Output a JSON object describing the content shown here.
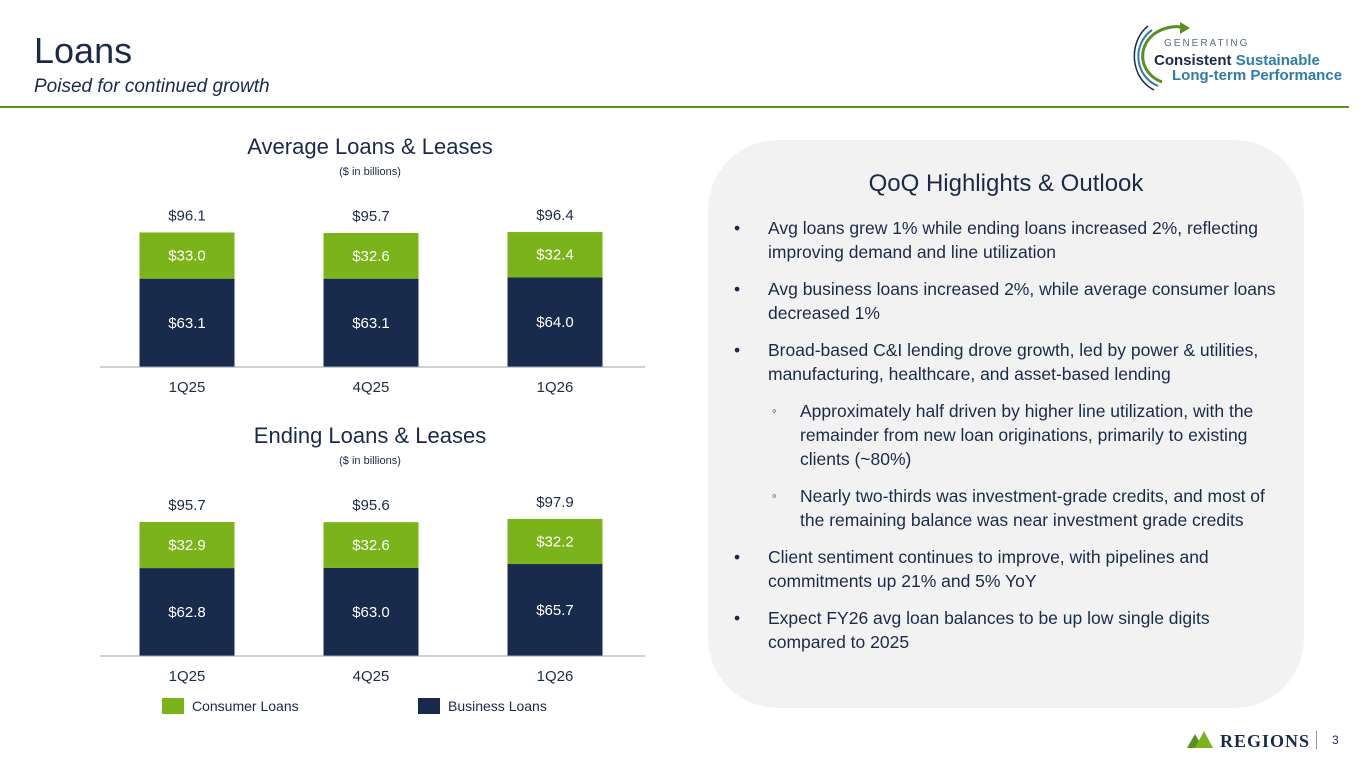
{
  "header": {
    "title": "Loans",
    "subtitle": "Poised for continued growth"
  },
  "logo": {
    "line1": "GENERATING",
    "line2a": "Consistent",
    "line2b": "Sustainable",
    "line3": "Long-term Performance"
  },
  "colors": {
    "consumer": "#7bb31a",
    "business": "#182b4d",
    "accent": "#5b8f22"
  },
  "chart_data": [
    {
      "type": "bar",
      "stacked": true,
      "title": "Average Loans & Leases",
      "subtitle": "($ in billions)",
      "categories": [
        "1Q25",
        "4Q25",
        "1Q26"
      ],
      "series": [
        {
          "name": "Business Loans",
          "values": [
            63.1,
            63.1,
            64.0
          ],
          "labels": [
            "$63.1",
            "$63.1",
            "$64.0"
          ]
        },
        {
          "name": "Consumer Loans",
          "values": [
            33.0,
            32.6,
            32.4
          ],
          "labels": [
            "$33.0",
            "$32.6",
            "$32.4"
          ]
        }
      ],
      "totals": [
        "$96.1",
        "$95.7",
        "$96.4"
      ],
      "ylim": [
        0,
        100
      ]
    },
    {
      "type": "bar",
      "stacked": true,
      "title": "Ending Loans & Leases",
      "subtitle": "($ in billions)",
      "categories": [
        "1Q25",
        "4Q25",
        "1Q26"
      ],
      "series": [
        {
          "name": "Business Loans",
          "values": [
            62.8,
            63.0,
            65.7
          ],
          "labels": [
            "$62.8",
            "$63.0",
            "$65.7"
          ]
        },
        {
          "name": "Consumer Loans",
          "values": [
            32.9,
            32.6,
            32.2
          ],
          "labels": [
            "$32.9",
            "$32.6",
            "$32.2"
          ]
        }
      ],
      "totals": [
        "$95.7",
        "$95.6",
        "$97.9"
      ],
      "ylim": [
        0,
        100
      ]
    }
  ],
  "legend": {
    "consumer": "Consumer Loans",
    "business": "Business Loans"
  },
  "highlights": {
    "title": "QoQ Highlights & Outlook",
    "items": [
      "Avg loans grew 1% while ending loans increased 2%, reflecting improving demand and line utilization",
      "Avg business loans increased 2%, while average consumer loans decreased 1%",
      "Broad-based C&I lending drove growth, led by power & utilities, manufacturing, healthcare, and asset-based lending",
      "Approximately half driven by higher line utilization, with the remainder from new loan originations, primarily to existing clients (~80%)",
      "Nearly two-thirds was investment-grade credits, and most of the remaining balance was near investment grade credits",
      "Client sentiment continues to improve, with pipelines and commitments up 21% and 5% YoY",
      "Expect FY26 avg loan balances to be up low single digits compared to 2025"
    ]
  },
  "footer": {
    "brand": "REGIONS",
    "page": "3"
  }
}
